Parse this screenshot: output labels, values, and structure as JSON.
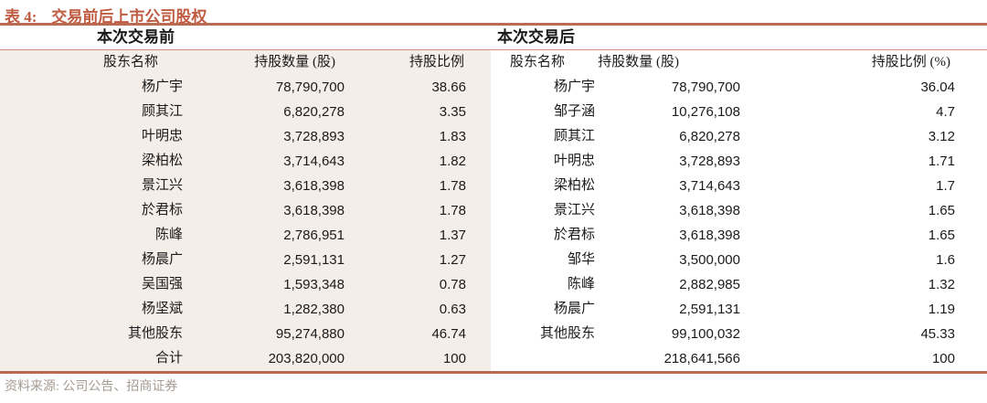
{
  "title": {
    "prefix": "表 4:",
    "text": "交易前后上市公司股权"
  },
  "source_note": "资料来源: 公司公告、招商证券",
  "colors": {
    "accent": "#bf5b41",
    "rule-thick": "#b96c52",
    "rule-thin": "#d09078",
    "shade": "#f5ede8",
    "muted": "#a49b92",
    "text": "#1a1a1a"
  },
  "tables": {
    "before": {
      "section_title": "本次交易前",
      "headers": [
        "股东名称",
        "持股数量 (股)",
        "持股比例"
      ],
      "rows": [
        [
          "杨广宇",
          "78,790,700",
          "38.66"
        ],
        [
          "顾其江",
          "6,820,278",
          "3.35"
        ],
        [
          "叶明忠",
          "3,728,893",
          "1.83"
        ],
        [
          "梁柏松",
          "3,714,643",
          "1.82"
        ],
        [
          "景江兴",
          "3,618,398",
          "1.78"
        ],
        [
          "於君标",
          "3,618,398",
          "1.78"
        ],
        [
          "陈峰",
          "2,786,951",
          "1.37"
        ],
        [
          "杨晨广",
          "2,591,131",
          "1.27"
        ],
        [
          "吴国强",
          "1,593,348",
          "0.78"
        ],
        [
          "杨坚斌",
          "1,282,380",
          "0.63"
        ],
        [
          "其他股东",
          "95,274,880",
          "46.74"
        ],
        [
          "合计",
          "203,820,000",
          "100"
        ]
      ]
    },
    "after": {
      "section_title": "本次交易后",
      "headers": [
        "股东名称",
        "持股数量 (股)",
        "持股比例 (%)"
      ],
      "rows": [
        [
          "杨广宇",
          "78,790,700",
          "36.04"
        ],
        [
          "邹子涵",
          "10,276,108",
          "4.7"
        ],
        [
          "顾其江",
          "6,820,278",
          "3.12"
        ],
        [
          "叶明忠",
          "3,728,893",
          "1.71"
        ],
        [
          "梁柏松",
          "3,714,643",
          "1.7"
        ],
        [
          "景江兴",
          "3,618,398",
          "1.65"
        ],
        [
          "於君标",
          "3,618,398",
          "1.65"
        ],
        [
          "邹华",
          "3,500,000",
          "1.6"
        ],
        [
          "陈峰",
          "2,882,985",
          "1.32"
        ],
        [
          "杨晨广",
          "2,591,131",
          "1.19"
        ],
        [
          "其他股东",
          "99,100,032",
          "45.33"
        ],
        [
          "",
          "218,641,566",
          "100"
        ]
      ]
    }
  }
}
